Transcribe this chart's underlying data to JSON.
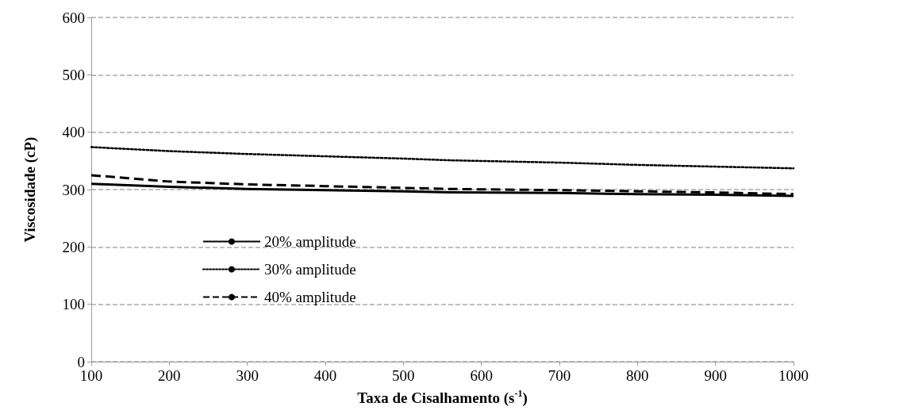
{
  "chart_data": {
    "type": "line",
    "xlabel": "Taxa de Cisalhamento (s$^{-1}$)",
    "ylabel": "Viscosidade (cP)",
    "x": [
      100,
      200,
      300,
      400,
      500,
      560,
      700,
      800,
      900,
      1000
    ],
    "series": [
      {
        "name": "20% amplitude",
        "color": "#000000",
        "line_style": "solid",
        "values": [
          310,
          305,
          301,
          299,
          297,
          295,
          294,
          292,
          291,
          289
        ]
      },
      {
        "name": "30% amplitude",
        "color": "#000000",
        "line_style": "dotted",
        "values": [
          374,
          367,
          362,
          358,
          354,
          351,
          347,
          343,
          340,
          337
        ]
      },
      {
        "name": "40% amplitude",
        "color": "#000000",
        "line_style": "dashed",
        "values": [
          325,
          314,
          309,
          306,
          303,
          301,
          299,
          297,
          295,
          292
        ]
      }
    ],
    "xlim": [
      100,
      1000
    ],
    "xticks": [
      100,
      200,
      300,
      400,
      500,
      600,
      700,
      800,
      900,
      1000
    ],
    "ylim": [
      0,
      600
    ],
    "yticks": [
      0,
      100,
      200,
      300,
      400,
      500,
      600
    ],
    "grid": "y",
    "legend": "bottom left",
    "marker": "none"
  }
}
